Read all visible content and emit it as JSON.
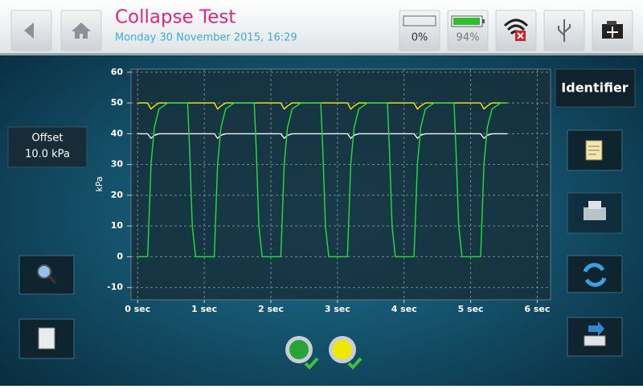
{
  "header": {
    "title": "Collapse Test",
    "datetime": "Monday 30 November 2015, 16:29"
  },
  "status": {
    "storage": "0%",
    "battery": "94%"
  },
  "offset": {
    "label": "Offset",
    "value": "10.0 kPa"
  },
  "identifier": "Identifier",
  "chart_data": {
    "type": "line",
    "ylabel": "kPa",
    "grid": true,
    "xlim": [
      -0.1,
      6.2
    ],
    "ylim": [
      -14,
      61
    ],
    "xticks": [
      {
        "value": 0,
        "label": "0 sec"
      },
      {
        "value": 1,
        "label": "1 sec"
      },
      {
        "value": 2,
        "label": "2 sec"
      },
      {
        "value": 3,
        "label": "3 sec"
      },
      {
        "value": 4,
        "label": "4 sec"
      },
      {
        "value": 5,
        "label": "5 sec"
      },
      {
        "value": 6,
        "label": "6 sec"
      }
    ],
    "yticks": [
      -10,
      0,
      10,
      20,
      30,
      40,
      50,
      60
    ],
    "x": [
      0,
      0.15,
      0.2,
      0.25,
      0.32,
      0.45,
      0.75,
      0.78,
      0.82,
      0.87,
      1.15,
      1.2,
      1.25,
      1.32,
      1.45,
      1.75,
      1.78,
      1.82,
      1.87,
      2.15,
      2.2,
      2.25,
      2.32,
      2.45,
      2.75,
      2.78,
      2.82,
      2.87,
      3.15,
      3.2,
      3.25,
      3.32,
      3.45,
      3.75,
      3.78,
      3.82,
      3.87,
      4.15,
      4.2,
      4.25,
      4.32,
      4.45,
      4.75,
      4.78,
      4.82,
      4.87,
      5.15,
      5.2,
      5.25,
      5.32,
      5.45,
      5.55
    ],
    "series": [
      {
        "color": "#f2f2f2",
        "values": [
          40,
          40,
          38.5,
          39.5,
          40,
          40,
          40,
          40,
          40,
          40,
          40,
          38.5,
          39.5,
          40,
          40,
          40,
          40,
          40,
          40,
          40,
          38.5,
          39.5,
          40,
          40,
          40,
          40,
          40,
          40,
          40,
          38.5,
          39.5,
          40,
          40,
          40,
          40,
          40,
          40,
          40,
          38.5,
          39.5,
          40,
          40,
          40,
          40,
          40,
          40,
          40,
          38.5,
          39.5,
          40,
          40,
          40
        ]
      },
      {
        "color": "#f4f000",
        "values": [
          50,
          50,
          48,
          49,
          50,
          50,
          50,
          50,
          50,
          50,
          50,
          48,
          49,
          50,
          50,
          50,
          50,
          50,
          50,
          50,
          48,
          49,
          50,
          50,
          50,
          50,
          50,
          50,
          50,
          48,
          49,
          50,
          50,
          50,
          50,
          50,
          50,
          50,
          48,
          49,
          50,
          50,
          50,
          50,
          50,
          50,
          50,
          48,
          49,
          50,
          50,
          50
        ]
      },
      {
        "color": "#22e03a",
        "values": [
          0,
          0,
          30,
          42,
          48,
          50,
          50,
          35,
          10,
          0,
          0,
          30,
          42,
          48,
          50,
          50,
          35,
          10,
          0,
          0,
          30,
          42,
          48,
          50,
          50,
          35,
          10,
          0,
          0,
          30,
          42,
          48,
          50,
          50,
          35,
          10,
          0,
          0,
          30,
          42,
          48,
          50,
          50,
          35,
          10,
          0,
          0,
          30,
          42,
          48,
          50,
          50
        ]
      }
    ]
  }
}
